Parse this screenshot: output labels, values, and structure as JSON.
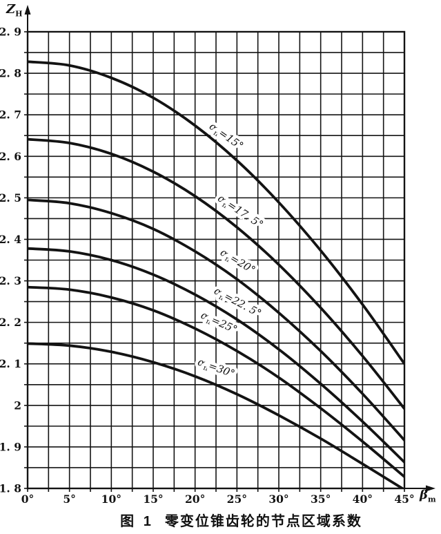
{
  "figure": {
    "caption_label": "图 1",
    "caption_title": "零变位锥齿轮的节点区域系数",
    "y_axis": {
      "sym": "Z",
      "sub": "H"
    },
    "x_axis": {
      "sym": "β",
      "sub": "m"
    }
  },
  "colors": {
    "ink": "#131313",
    "paper": "#ffffff"
  },
  "chart_data": {
    "type": "line",
    "title": "图 1 零变位锥齿轮的节点区域系数",
    "xlabel": "βm",
    "ylabel": "ZH",
    "xlim": [
      0,
      45
    ],
    "ylim": [
      1.8,
      2.9
    ],
    "x_major_step": 5,
    "x_minor_step": 2.5,
    "y_major_step": 0.1,
    "y_minor_step": 0.05,
    "grid": true,
    "legend_position": "on-curve-labels",
    "x_ticks": [
      "0°",
      "5°",
      "10°",
      "15°",
      "20°",
      "25°",
      "30°",
      "35°",
      "40°",
      "45°"
    ],
    "y_ticks": [
      "2. 9",
      "2. 8",
      "2. 7",
      "2. 6",
      "2. 5",
      "2. 4",
      "2. 3",
      "2. 2",
      "2. 1",
      "2",
      "1. 9",
      "1. 8"
    ],
    "y_tick_values": [
      2.9,
      2.8,
      2.7,
      2.6,
      2.5,
      2.4,
      2.3,
      2.2,
      2.1,
      2.0,
      1.9,
      1.8
    ],
    "x": [
      0,
      5,
      10,
      15,
      20,
      25,
      30,
      35,
      40,
      45
    ],
    "series": [
      {
        "name": "αn=15°",
        "sym": "α",
        "sub": "n",
        "eq": "=15°",
        "label_deg": 23.5,
        "label_dy": -16,
        "values": [
          2.828,
          2.819,
          2.789,
          2.741,
          2.674,
          2.59,
          2.489,
          2.373,
          2.243,
          2.1
        ]
      },
      {
        "name": "αn=17.5°",
        "sym": "α",
        "sub": "n",
        "eq": "=17. 5°",
        "label_deg": 25.2,
        "label_dy": -21,
        "values": [
          2.641,
          2.632,
          2.606,
          2.563,
          2.504,
          2.429,
          2.339,
          2.235,
          2.119,
          1.992
        ]
      },
      {
        "name": "αn=20°",
        "sym": "α",
        "sub": "n",
        "eq": "=20°",
        "label_deg": 24.9,
        "label_dy": -21,
        "values": [
          2.495,
          2.487,
          2.463,
          2.425,
          2.371,
          2.304,
          2.223,
          2.131,
          2.028,
          1.916
        ]
      },
      {
        "name": "αn=22.5°",
        "sym": "α",
        "sub": "n",
        "eq": "=22. 5°",
        "label_deg": 24.9,
        "label_dy": -20,
        "values": [
          2.378,
          2.371,
          2.35,
          2.315,
          2.267,
          2.207,
          2.135,
          2.052,
          1.961,
          1.863
        ]
      },
      {
        "name": "αn=25°",
        "sym": "α",
        "sub": "n",
        "eq": "=25°",
        "label_deg": 22.7,
        "label_dy": -22,
        "values": [
          2.285,
          2.279,
          2.26,
          2.229,
          2.185,
          2.131,
          2.067,
          1.993,
          1.913,
          1.828
        ]
      },
      {
        "name": "αn=30°",
        "sym": "α",
        "sub": "n",
        "eq": "=30°",
        "label_deg": 22.4,
        "label_dy": -20,
        "values": [
          2.149,
          2.144,
          2.129,
          2.104,
          2.07,
          2.027,
          1.976,
          1.92,
          1.859,
          1.797
        ]
      }
    ]
  }
}
